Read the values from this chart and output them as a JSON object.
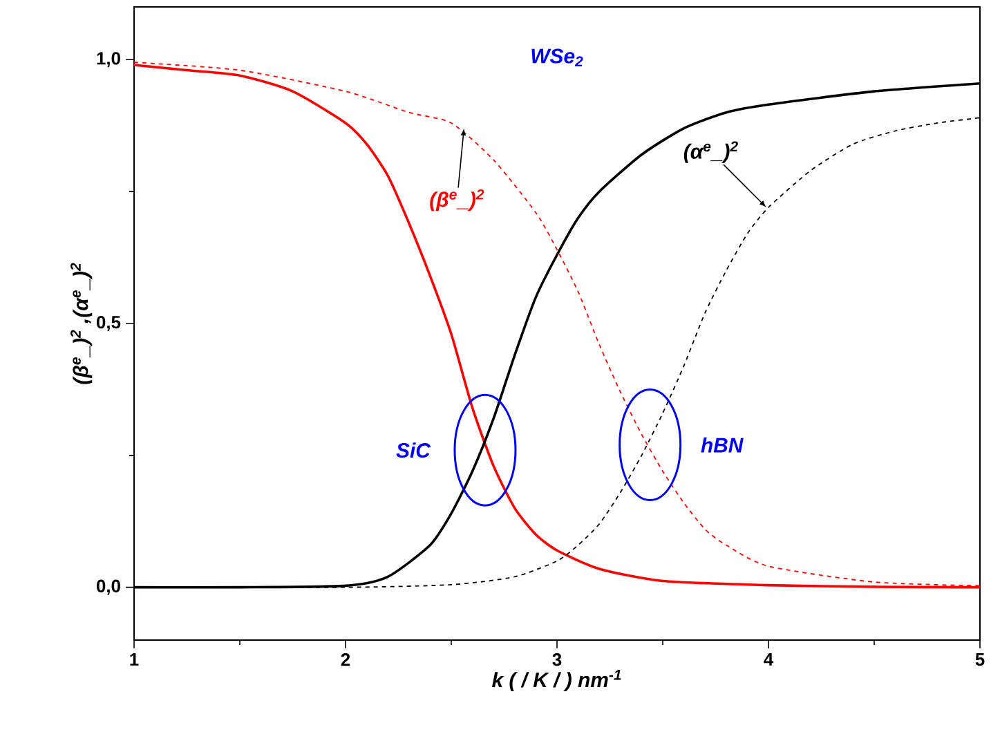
{
  "chart_data": {
    "type": "line",
    "xlabel": "k ( / K / ) nm$^{-1}$",
    "ylabel": "(β$^{e}$_)$^{2}$ ,(α$^{e}$_)$^{2}$",
    "xlim": [
      1,
      5
    ],
    "ylim": [
      -0.1,
      1.1
    ],
    "xticks": [
      1,
      {
        "value": 1.5,
        "label": null
      },
      2,
      {
        "value": 2.5,
        "label": null
      },
      3,
      {
        "value": 3.5,
        "label": null
      },
      4,
      {
        "value": 4.5,
        "label": null
      },
      5
    ],
    "yticks": [
      {
        "value": 0,
        "label": "0,0"
      },
      {
        "value": 0.25,
        "label": null
      },
      {
        "value": 0.5,
        "label": "0,5"
      },
      {
        "value": 0.75,
        "label": null
      },
      {
        "value": 1,
        "label": "1,0"
      }
    ],
    "grid": false,
    "marker": "none",
    "series": [
      {
        "color": "#ff0000",
        "line_style": "solid",
        "x": [
          1,
          1.25,
          1.5,
          1.75,
          2,
          2.1,
          2.2,
          2.3,
          2.4,
          2.5,
          2.6,
          2.7,
          2.8,
          2.9,
          3,
          3.2,
          3.5,
          4,
          4.5,
          5
        ],
        "values": [
          0.99,
          0.98,
          0.97,
          0.94,
          0.88,
          0.84,
          0.78,
          0.69,
          0.59,
          0.48,
          0.34,
          0.23,
          0.15,
          0.1,
          0.07,
          0.035,
          0.012,
          0.004,
          0.001,
          0
        ]
      },
      {
        "color": "#000000",
        "line_style": "solid",
        "x": [
          1,
          1.5,
          2,
          2.2,
          2.4,
          2.5,
          2.6,
          2.7,
          2.8,
          2.9,
          3,
          3.1,
          3.2,
          3.4,
          3.6,
          3.8,
          4,
          4.5,
          5
        ],
        "values": [
          0,
          0,
          0.003,
          0.02,
          0.08,
          0.14,
          0.22,
          0.32,
          0.44,
          0.55,
          0.63,
          0.7,
          0.75,
          0.82,
          0.87,
          0.9,
          0.915,
          0.94,
          0.955
        ]
      },
      {
        "color": "#ff0000",
        "line_style": "dashed",
        "x": [
          1,
          1.5,
          2,
          2.3,
          2.5,
          2.7,
          2.9,
          3,
          3.1,
          3.2,
          3.3,
          3.4,
          3.5,
          3.6,
          3.7,
          3.8,
          4,
          4.5,
          5
        ],
        "values": [
          0.995,
          0.98,
          0.94,
          0.9,
          0.88,
          0.81,
          0.71,
          0.64,
          0.56,
          0.46,
          0.37,
          0.29,
          0.22,
          0.16,
          0.11,
          0.08,
          0.04,
          0.01,
          0.003
        ]
      },
      {
        "color": "#000000",
        "line_style": "dashed",
        "x": [
          1,
          2,
          2.5,
          2.8,
          3,
          3.1,
          3.2,
          3.3,
          3.4,
          3.5,
          3.6,
          3.7,
          3.8,
          3.9,
          4,
          4.2,
          4.4,
          4.6,
          4.8,
          5
        ],
        "values": [
          0,
          0,
          0.005,
          0.02,
          0.05,
          0.08,
          0.12,
          0.18,
          0.25,
          0.33,
          0.42,
          0.52,
          0.6,
          0.67,
          0.72,
          0.79,
          0.84,
          0.865,
          0.88,
          0.89
        ]
      }
    ],
    "annotations": [
      "WSe$_{2}$",
      {
        "text": "SiC",
        "x": 2.66,
        "y": 0.26
      },
      {
        "text": "hBN",
        "x": 3.44,
        "y": 0.27
      },
      {
        "text": "(β$^{e}$_)$^{2}$",
        "x": 2.56,
        "y": 0.87
      },
      {
        "text": "(α$^{e}$_)$^{2}$",
        "x": 3.99,
        "y": 0.72
      }
    ]
  }
}
